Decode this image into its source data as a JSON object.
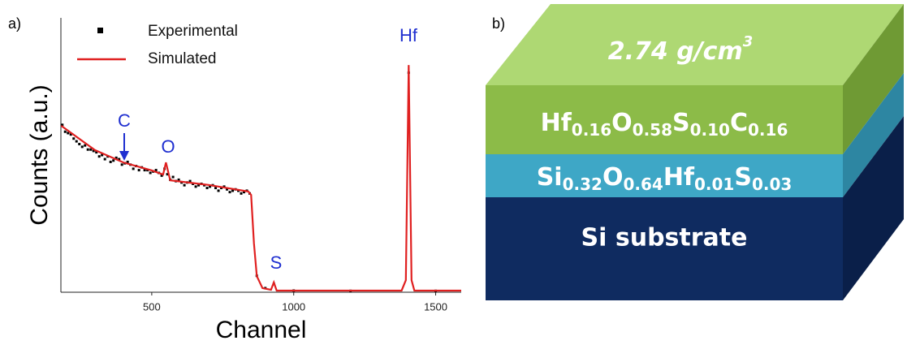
{
  "panel_a": {
    "label": "a)",
    "chart_data": {
      "type": "line",
      "x_label": "Channel",
      "y_label": "Counts (a.u.)",
      "xlim": [
        180,
        1590
      ],
      "xticks": [
        500,
        1000,
        1500
      ],
      "ylim": [
        0,
        100
      ],
      "legend": "upper left",
      "series": [
        {
          "name": "Experimental",
          "color": "#000000",
          "marker": "square",
          "x": [
            185,
            195,
            205,
            215,
            225,
            235,
            245,
            255,
            265,
            275,
            285,
            295,
            305,
            315,
            325,
            335,
            345,
            355,
            365,
            375,
            385,
            395,
            405,
            415,
            425,
            435,
            445,
            455,
            465,
            475,
            485,
            495,
            505,
            515,
            525,
            535,
            545,
            555,
            565,
            575,
            585,
            595,
            605,
            615,
            625,
            635,
            645,
            655,
            665,
            675,
            685,
            695,
            705,
            715,
            725,
            735,
            745,
            755,
            765,
            775,
            785,
            795,
            805,
            815,
            825,
            835,
            845,
            870,
            900,
            930,
            1000,
            1200,
            1405,
            1500
          ],
          "values": [
            61,
            58.5,
            58,
            57.5,
            56,
            55,
            54,
            53,
            53.5,
            52,
            52,
            51.5,
            51,
            49.5,
            50,
            48.5,
            49.5,
            47.5,
            48,
            49,
            48.5,
            46.5,
            47,
            47.5,
            46.5,
            45,
            46,
            44.5,
            45.5,
            44.5,
            44.5,
            43.5,
            44,
            44.5,
            43.5,
            42.5,
            45,
            43,
            41,
            42,
            40.5,
            41,
            40,
            39,
            40,
            40.5,
            39.5,
            38.5,
            39,
            39.5,
            39,
            38,
            38.5,
            39,
            38,
            37,
            38,
            38.5,
            37.5,
            36.5,
            37,
            37.5,
            37,
            36,
            36.5,
            37,
            36,
            6,
            1.5,
            3,
            0.6,
            0.5,
            80,
            0.5
          ]
        },
        {
          "name": "Simulated",
          "color": "#e02020",
          "marker": "line",
          "x": [
            181,
            300,
            400,
            500,
            540,
            550,
            565,
            700,
            840,
            850,
            860,
            870,
            890,
            920,
            930,
            940,
            1380,
            1395,
            1405,
            1415,
            1425,
            1590
          ],
          "values": [
            60.7,
            51.8,
            47.3,
            44.4,
            42.9,
            47.3,
            40.8,
            39.1,
            36.7,
            35.5,
            17.8,
            5.9,
            1.5,
            0.9,
            3.6,
            0.6,
            0.6,
            4.4,
            82.8,
            4.4,
            0.6,
            0.6
          ]
        }
      ],
      "annotations": [
        "C",
        "O",
        "S",
        "Hf"
      ]
    }
  },
  "panel_b": {
    "label": "b)",
    "density": {
      "text": "2.74 g/cm",
      "sup": "3"
    },
    "layers": [
      [
        {
          "text": "Hf",
          "sub": "0.16"
        },
        {
          "text": "O",
          "sub": "0.58"
        },
        {
          "text": "S",
          "sub": "0.10"
        },
        {
          "text": "C",
          "sub": "0.16"
        }
      ],
      [
        {
          "text": "Si",
          "sub": "0.32"
        },
        {
          "text": "O",
          "sub": "0.64"
        },
        {
          "text": "Hf",
          "sub": "0.01"
        },
        {
          "text": "S",
          "sub": "0.03"
        }
      ],
      "Si substrate"
    ]
  }
}
